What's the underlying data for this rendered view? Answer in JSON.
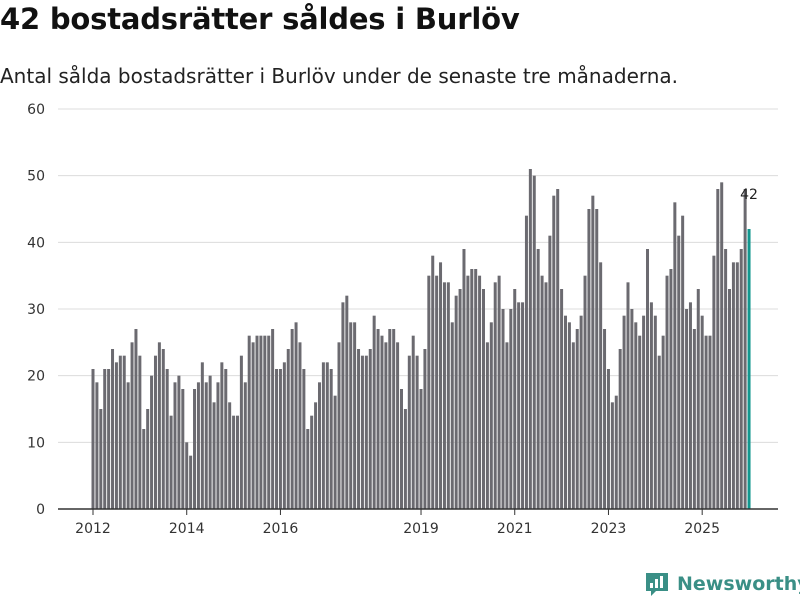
{
  "title": "42 bostadsrätter såldes i Burlöv",
  "subtitle": "Antal sålda bostadsrätter i Burlöv under de senaste tre månaderna.",
  "brand": {
    "name": "Newsworthy",
    "logo_icon": "newsworthy-logo-icon"
  },
  "colors": {
    "bar": "#6b6a70",
    "highlight": "#12978f",
    "grid": "#dcdcdc",
    "axis": "#333333"
  },
  "chart_data": {
    "type": "bar",
    "title": "42 bostadsrätter såldes i Burlöv",
    "xlabel": "",
    "ylabel": "",
    "ylim": [
      0,
      60
    ],
    "y_ticks": [
      "0",
      "10",
      "20",
      "30",
      "40",
      "50",
      "60"
    ],
    "x_ticks": [
      "2012",
      "2014",
      "2016",
      "2019",
      "2021",
      "2023",
      "2025"
    ],
    "start_year": 2012,
    "highlight_last": true,
    "highlight_label": "42",
    "values": [
      21,
      19,
      15,
      21,
      21,
      24,
      22,
      23,
      23,
      19,
      25,
      27,
      23,
      12,
      15,
      20,
      23,
      25,
      24,
      21,
      14,
      19,
      20,
      18,
      10,
      8,
      18,
      19,
      22,
      19,
      20,
      16,
      19,
      22,
      21,
      16,
      14,
      14,
      23,
      19,
      26,
      25,
      26,
      26,
      26,
      26,
      27,
      21,
      21,
      22,
      24,
      27,
      28,
      25,
      21,
      12,
      14,
      16,
      19,
      22,
      22,
      21,
      17,
      25,
      31,
      32,
      28,
      28,
      24,
      23,
      23,
      24,
      29,
      27,
      26,
      25,
      27,
      27,
      25,
      18,
      15,
      23,
      26,
      23,
      18,
      24,
      35,
      38,
      35,
      37,
      34,
      34,
      28,
      32,
      33,
      39,
      35,
      36,
      36,
      35,
      33,
      25,
      28,
      34,
      35,
      30,
      25,
      30,
      33,
      31,
      31,
      44,
      51,
      50,
      39,
      35,
      34,
      41,
      47,
      48,
      33,
      29,
      28,
      25,
      27,
      29,
      35,
      45,
      47,
      45,
      37,
      27,
      21,
      16,
      17,
      24,
      29,
      34,
      30,
      28,
      26,
      29,
      39,
      31,
      29,
      23,
      26,
      35,
      36,
      46,
      41,
      44,
      30,
      31,
      27,
      33,
      29,
      26,
      26,
      38,
      48,
      49,
      39,
      33,
      37,
      37,
      39,
      48,
      42
    ]
  }
}
